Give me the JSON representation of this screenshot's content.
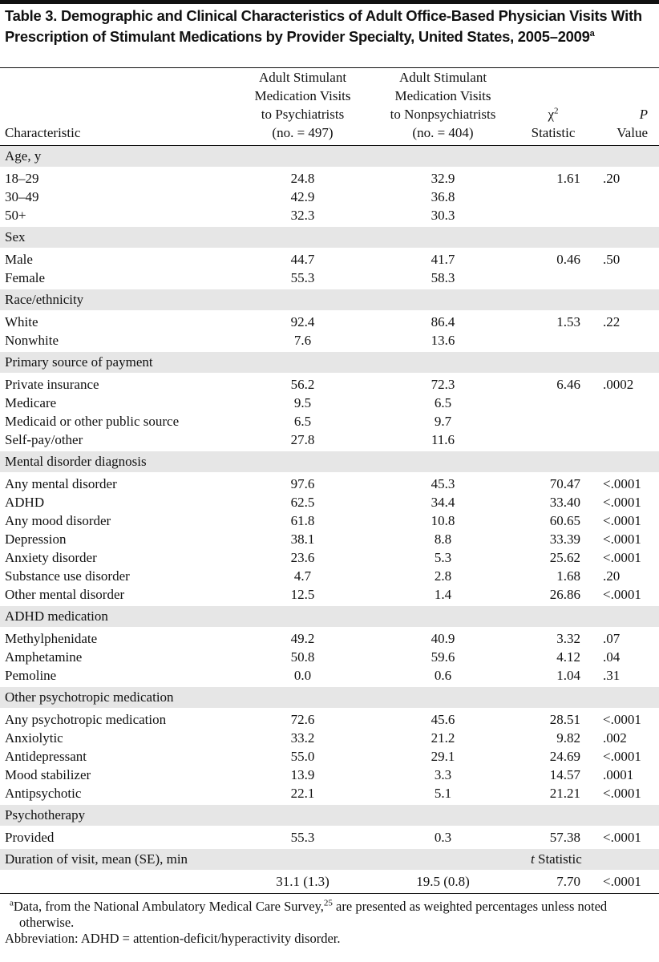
{
  "title": {
    "text": "Table 3. Demographic and Clinical Characteristics of Adult Office-Based Physician Visits With Prescription of Stimulant Medications by Provider Specialty, United States, 2005–2009",
    "sup": "a"
  },
  "table": {
    "columns": [
      {
        "lines": [
          "Characteristic"
        ]
      },
      {
        "lines": [
          "Adult Stimulant",
          "Medication Visits",
          "to Psychiatrists",
          "(no. = 497)"
        ]
      },
      {
        "lines": [
          "Adult Stimulant",
          "Medication Visits",
          "to Nonpsychiatrists",
          "(no. = 404)"
        ]
      },
      {
        "symbol": "χ",
        "sup": "2",
        "label": "Statistic"
      },
      {
        "symbol": "P",
        "label": "Value"
      }
    ],
    "sections": [
      {
        "label": "Age, y",
        "rows": [
          [
            "18–29",
            "24.8",
            "32.9",
            "1.61",
            ".20"
          ],
          [
            "30–49",
            "42.9",
            "36.8",
            null,
            null
          ],
          [
            "50+",
            "32.3",
            "30.3",
            null,
            null
          ]
        ]
      },
      {
        "label": "Sex",
        "rows": [
          [
            "Male",
            "44.7",
            "41.7",
            "0.46",
            ".50"
          ],
          [
            "Female",
            "55.3",
            "58.3",
            null,
            null
          ]
        ]
      },
      {
        "label": "Race/ethnicity",
        "rows": [
          [
            "White",
            "92.4",
            "86.4",
            "1.53",
            ".22"
          ],
          [
            "Nonwhite",
            "7.6",
            "13.6",
            null,
            null
          ]
        ]
      },
      {
        "label": "Primary source of payment",
        "rows": [
          [
            "Private insurance",
            "56.2",
            "72.3",
            "6.46",
            ".0002"
          ],
          [
            "Medicare",
            "9.5",
            "6.5",
            null,
            null
          ],
          [
            "Medicaid or other public source",
            "6.5",
            "9.7",
            null,
            null
          ],
          [
            "Self-pay/other",
            "27.8",
            "11.6",
            null,
            null
          ]
        ]
      },
      {
        "label": "Mental disorder diagnosis",
        "rows": [
          [
            "Any mental disorder",
            "97.6",
            "45.3",
            "70.47",
            "<.0001"
          ],
          [
            "ADHD",
            "62.5",
            "34.4",
            "33.40",
            "<.0001"
          ],
          [
            "Any mood disorder",
            "61.8",
            "10.8",
            "60.65",
            "<.0001"
          ],
          [
            "Depression",
            "38.1",
            "8.8",
            "33.39",
            "<.0001"
          ],
          [
            "Anxiety disorder",
            "23.6",
            "5.3",
            "25.62",
            "<.0001"
          ],
          [
            "Substance use disorder",
            "4.7",
            "2.8",
            "1.68",
            ".20"
          ],
          [
            "Other mental disorder",
            "12.5",
            "1.4",
            "26.86",
            "<.0001"
          ]
        ]
      },
      {
        "label": "ADHD medication",
        "rows": [
          [
            "Methylphenidate",
            "49.2",
            "40.9",
            "3.32",
            ".07"
          ],
          [
            "Amphetamine",
            "50.8",
            "59.6",
            "4.12",
            ".04"
          ],
          [
            "Pemoline",
            "0.0",
            "0.6",
            "1.04",
            ".31"
          ]
        ]
      },
      {
        "label": "Other psychotropic medication",
        "rows": [
          [
            "Any psychotropic medication",
            "72.6",
            "45.6",
            "28.51",
            "<.0001"
          ],
          [
            "Anxiolytic",
            "33.2",
            "21.2",
            "9.82",
            ".002"
          ],
          [
            "Antidepressant",
            "55.0",
            "29.1",
            "24.69",
            "<.0001"
          ],
          [
            "Mood stabilizer",
            "13.9",
            "3.3",
            "14.57",
            ".0001"
          ],
          [
            "Antipsychotic",
            "22.1",
            "5.1",
            "21.21",
            "<.0001"
          ]
        ]
      },
      {
        "label": "Psychotherapy",
        "rows": [
          [
            "Provided",
            "55.3",
            "0.3",
            "57.38",
            "<.0001"
          ]
        ]
      },
      {
        "label": "Duration of visit, mean (SE), min",
        "stat_label": {
          "symbol": "t",
          "label": "Statistic"
        },
        "rows": [
          [
            null,
            "31.1 (1.3)",
            "19.5 (0.8)",
            "7.70",
            "<.0001"
          ]
        ]
      }
    ]
  },
  "footnotes": [
    {
      "mark": "a",
      "text": "Data, from the National Ambulatory Medical Care Survey,",
      "ref": "25",
      "after": " are presented as weighted percentages unless noted otherwise."
    },
    {
      "text": "Abbreviation: ADHD = attention-deficit/hyperactivity disorder."
    }
  ]
}
